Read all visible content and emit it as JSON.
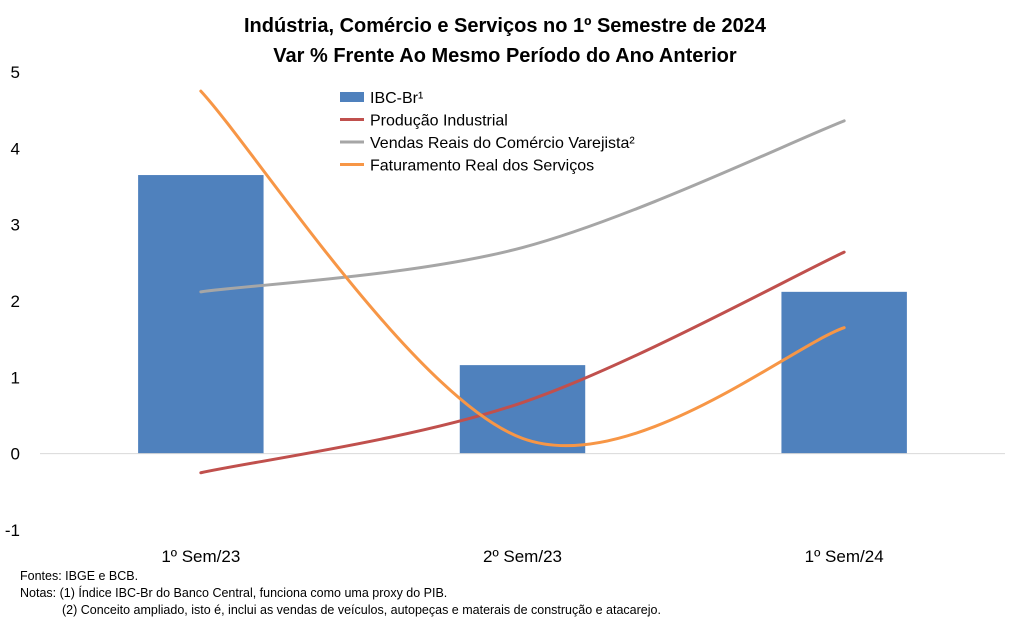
{
  "chart_data": {
    "type": "bar",
    "title": "Indústria, Comércio e Serviços no 1º Semestre de 2024",
    "subtitle": "Var % Frente Ao Mesmo Período do Ano Anterior",
    "categories": [
      "1º Sem/23",
      "2º Sem/23",
      "1º Sem/24"
    ],
    "ylim": [
      -1,
      5
    ],
    "yticks": [
      "5",
      "4",
      "3",
      "2",
      "1",
      "0",
      "-1"
    ],
    "ytick_values": [
      5,
      4,
      3,
      2,
      1,
      0,
      -1
    ],
    "grid": false,
    "legend_position": "top-center",
    "series": [
      {
        "name": "IBC-Br¹",
        "kind": "bar",
        "color": "#4f81bd",
        "values": [
          3.65,
          1.16,
          2.12
        ]
      },
      {
        "name": "Produção Industrial",
        "kind": "line",
        "color": "#c0504d",
        "values": [
          -0.25,
          0.67,
          2.64
        ]
      },
      {
        "name": "Vendas Reais do Comércio Varejista²",
        "kind": "line",
        "color": "#a6a6a6",
        "values": [
          2.12,
          2.7,
          4.36
        ]
      },
      {
        "name": "Faturamento Real dos Serviços",
        "kind": "line",
        "color": "#f79646",
        "values": [
          4.75,
          0.2,
          1.65
        ]
      }
    ]
  },
  "footer": {
    "source": "Fontes: IBGE e BCB.",
    "note1": "Notas: (1) Índice IBC-Br do Banco Central, funciona como uma proxy do PIB.",
    "note2": "(2) Conceito ampliado, isto é, inclui as vendas de veículos, autopeças e materais de construção e atacarejo."
  }
}
